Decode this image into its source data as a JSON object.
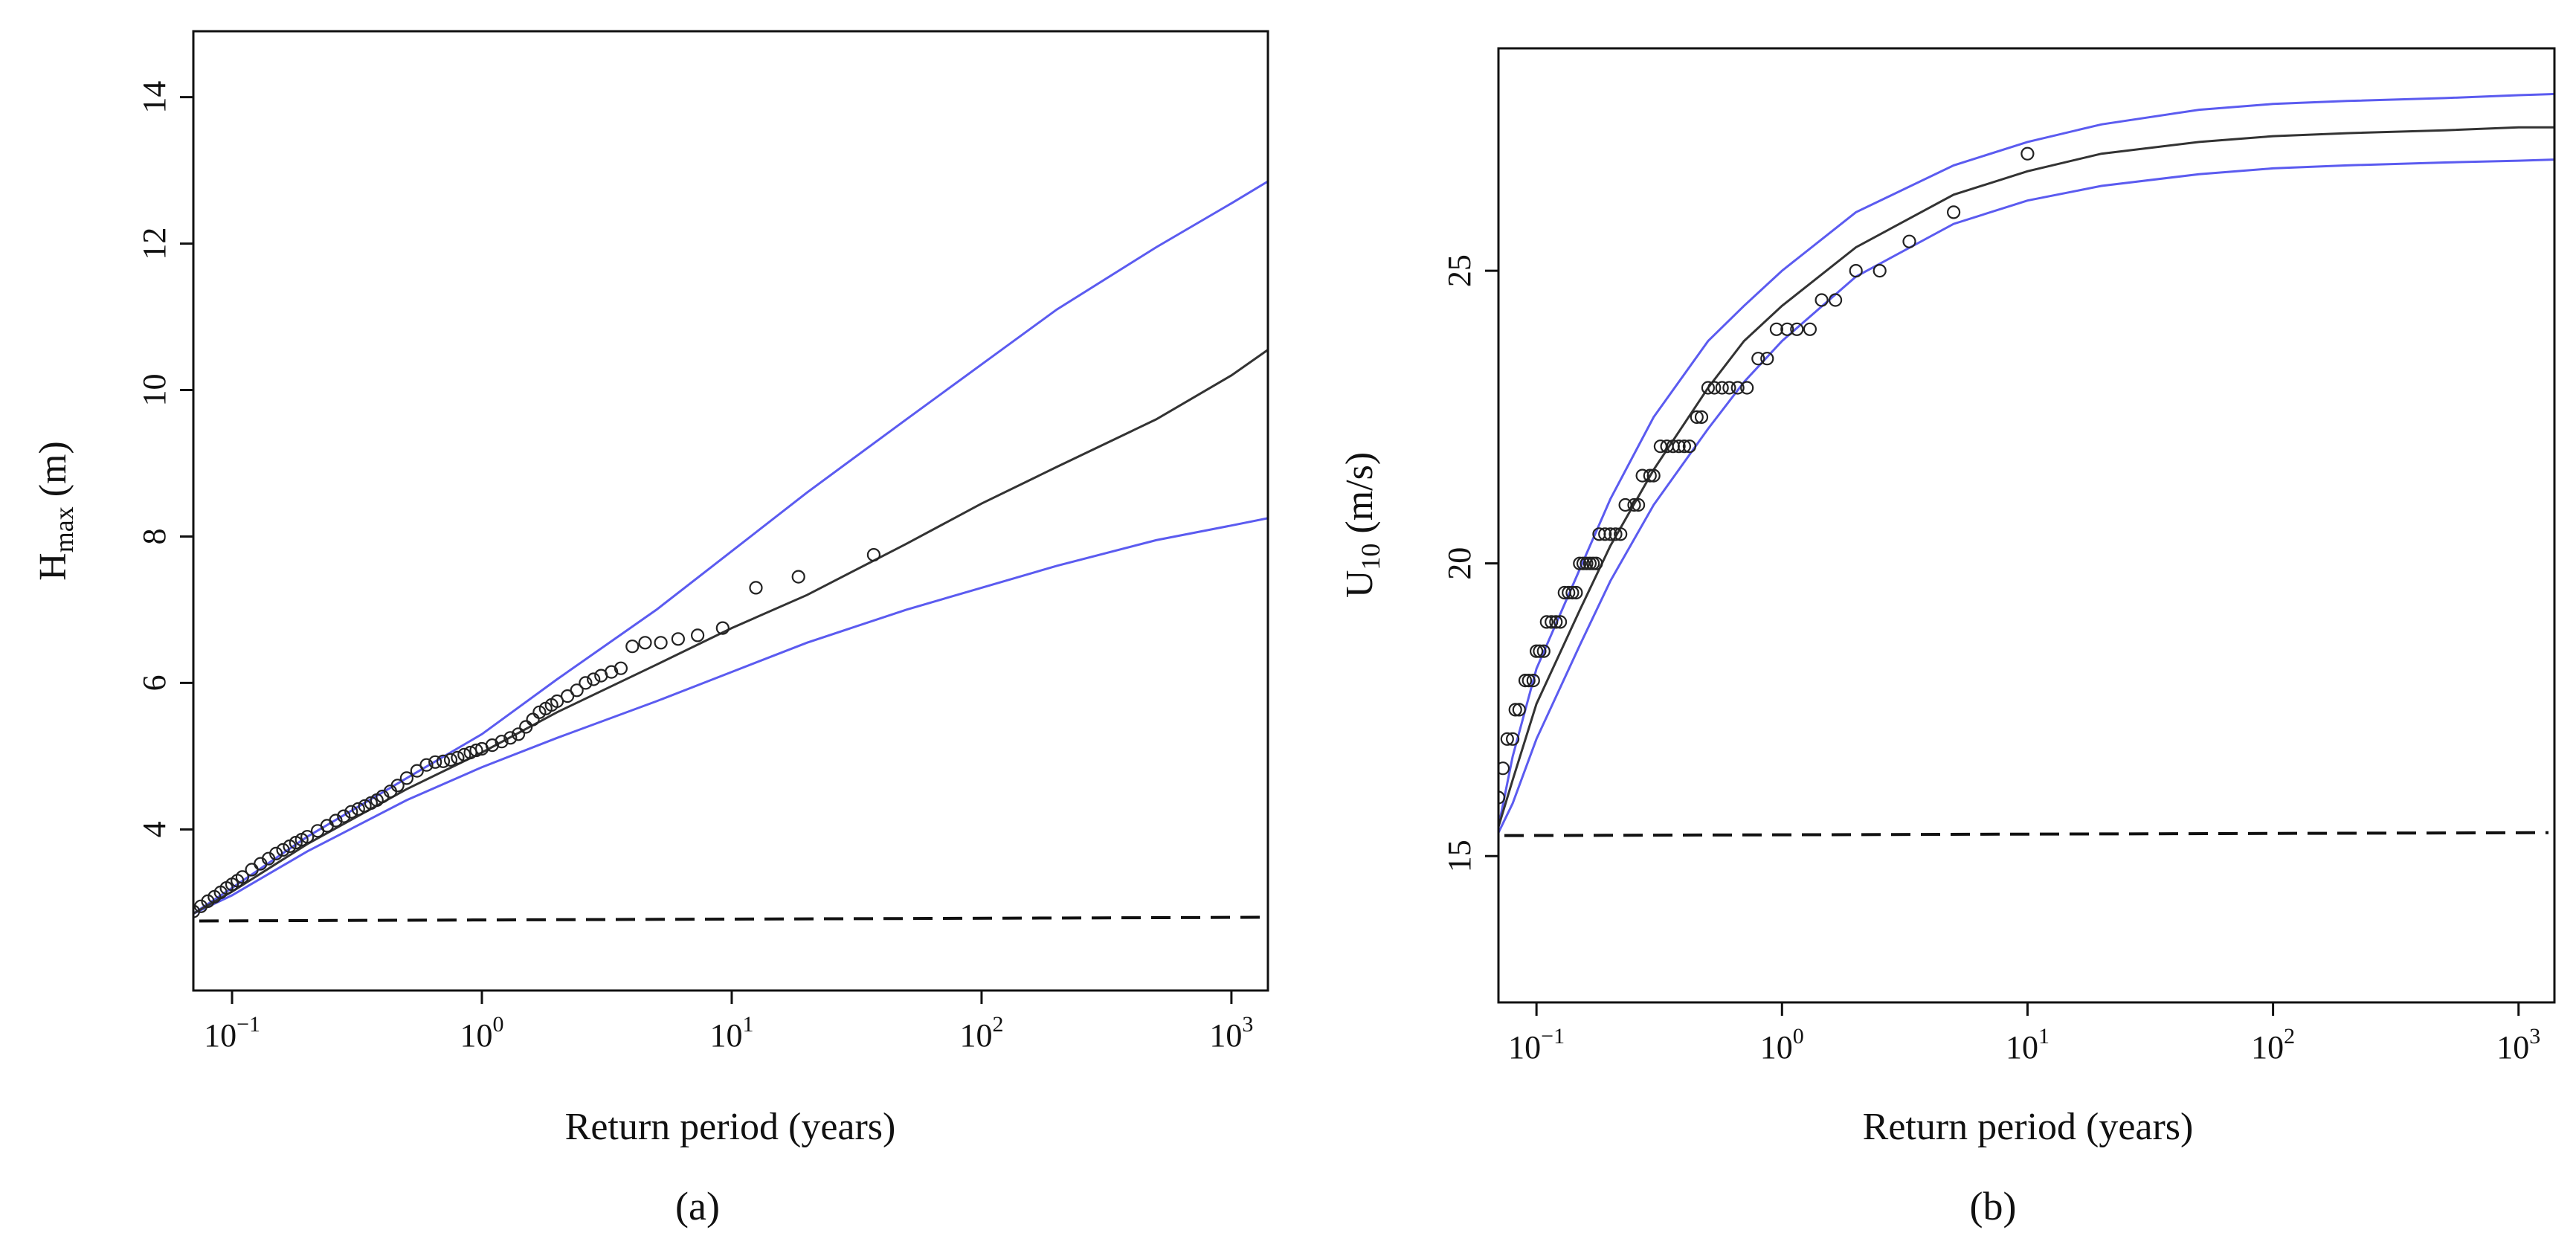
{
  "chart_data": [
    {
      "panel": "a",
      "type": "line",
      "panel_label": "(a)",
      "xlabel": "Return period (years)",
      "ylabel_main": "H",
      "ylabel_sub": "max",
      "ylabel_unit": " (m)",
      "xscale": "log10",
      "xlim": [
        0.07,
        1400
      ],
      "ylim": [
        1.8,
        14.9
      ],
      "xticks": [
        {
          "value": 0.1,
          "exp": "−1"
        },
        {
          "value": 1,
          "exp": "0"
        },
        {
          "value": 10,
          "exp": "1"
        },
        {
          "value": 100,
          "exp": "2"
        },
        {
          "value": 1000,
          "exp": "3"
        }
      ],
      "yticks": [
        4,
        6,
        8,
        10,
        12,
        14
      ],
      "colors": {
        "fit": "#333333",
        "ci": "#5b5bf0",
        "threshold": "#111111",
        "points": "#222222"
      },
      "fit": {
        "x": [
          0.07,
          0.1,
          0.2,
          0.5,
          1,
          2,
          5,
          10,
          20,
          50,
          100,
          200,
          500,
          1000,
          1400
        ],
        "y": [
          2.85,
          3.15,
          3.8,
          4.55,
          5.05,
          5.6,
          6.25,
          6.75,
          7.2,
          7.9,
          8.45,
          8.95,
          9.6,
          10.2,
          10.55
        ]
      },
      "ci_upper": {
        "x": [
          0.07,
          0.1,
          0.2,
          0.5,
          1,
          2,
          5,
          10,
          20,
          50,
          100,
          200,
          500,
          1000,
          1400
        ],
        "y": [
          2.85,
          3.2,
          3.9,
          4.7,
          5.3,
          6.05,
          7.0,
          7.8,
          8.6,
          9.6,
          10.35,
          11.1,
          11.95,
          12.55,
          12.85
        ]
      },
      "ci_lower": {
        "x": [
          0.07,
          0.1,
          0.2,
          0.5,
          1,
          2,
          5,
          10,
          20,
          50,
          100,
          200,
          500,
          1000,
          1400
        ],
        "y": [
          2.85,
          3.1,
          3.7,
          4.4,
          4.85,
          5.25,
          5.75,
          6.15,
          6.55,
          7.0,
          7.3,
          7.6,
          7.95,
          8.15,
          8.25
        ]
      },
      "threshold": {
        "y_start": 2.75,
        "y_end": 2.8
      },
      "points": {
        "x": [
          0.07,
          0.075,
          0.08,
          0.085,
          0.09,
          0.095,
          0.1,
          0.105,
          0.11,
          0.12,
          0.13,
          0.14,
          0.15,
          0.16,
          0.17,
          0.18,
          0.19,
          0.2,
          0.22,
          0.24,
          0.26,
          0.28,
          0.3,
          0.32,
          0.34,
          0.36,
          0.38,
          0.4,
          0.43,
          0.46,
          0.5,
          0.55,
          0.6,
          0.65,
          0.7,
          0.75,
          0.8,
          0.85,
          0.9,
          0.95,
          1.0,
          1.1,
          1.2,
          1.3,
          1.4,
          1.5,
          1.6,
          1.7,
          1.8,
          1.9,
          2.0,
          2.2,
          2.4,
          2.6,
          2.8,
          3.0,
          3.3,
          3.6,
          4.0,
          4.5,
          5.2,
          6.1,
          7.3,
          9.2,
          12.5,
          18.5,
          37
        ],
        "y": [
          2.88,
          2.95,
          3.02,
          3.08,
          3.14,
          3.2,
          3.25,
          3.3,
          3.35,
          3.45,
          3.53,
          3.6,
          3.67,
          3.72,
          3.77,
          3.82,
          3.86,
          3.9,
          3.98,
          4.05,
          4.12,
          4.18,
          4.24,
          4.28,
          4.32,
          4.36,
          4.4,
          4.45,
          4.52,
          4.6,
          4.7,
          4.8,
          4.88,
          4.92,
          4.93,
          4.95,
          4.98,
          5.02,
          5.05,
          5.08,
          5.1,
          5.15,
          5.2,
          5.25,
          5.3,
          5.4,
          5.5,
          5.6,
          5.65,
          5.7,
          5.75,
          5.82,
          5.9,
          6.0,
          6.05,
          6.1,
          6.15,
          6.2,
          6.5,
          6.55,
          6.55,
          6.6,
          6.65,
          6.75,
          7.3,
          7.45,
          7.75
        ]
      }
    },
    {
      "panel": "b",
      "type": "line",
      "panel_label": "(b)",
      "xlabel": "Return period (years)",
      "ylabel_main": "U",
      "ylabel_sub": "10",
      "ylabel_unit": " (m/s)",
      "xscale": "log10",
      "xlim": [
        0.07,
        1400
      ],
      "ylim": [
        12.5,
        28.8
      ],
      "xticks": [
        {
          "value": 0.1,
          "exp": "−1"
        },
        {
          "value": 1,
          "exp": "0"
        },
        {
          "value": 10,
          "exp": "1"
        },
        {
          "value": 100,
          "exp": "2"
        },
        {
          "value": 1000,
          "exp": "3"
        }
      ],
      "yticks": [
        15,
        20,
        25
      ],
      "colors": {
        "fit": "#333333",
        "ci": "#5b5bf0",
        "threshold": "#111111",
        "points": "#222222"
      },
      "fit": {
        "x": [
          0.07,
          0.08,
          0.1,
          0.15,
          0.2,
          0.3,
          0.5,
          0.7,
          1,
          2,
          5,
          10,
          20,
          50,
          100,
          200,
          500,
          1000,
          1400
        ],
        "y": [
          15.5,
          16.3,
          17.6,
          19.2,
          20.3,
          21.6,
          23.0,
          23.8,
          24.4,
          25.4,
          26.3,
          26.7,
          27.0,
          27.2,
          27.3,
          27.35,
          27.4,
          27.45,
          27.45
        ]
      },
      "ci_upper": {
        "x": [
          0.07,
          0.08,
          0.1,
          0.15,
          0.2,
          0.3,
          0.5,
          0.7,
          1,
          2,
          5,
          10,
          20,
          50,
          100,
          200,
          500,
          1000,
          1400
        ],
        "y": [
          15.5,
          16.7,
          18.2,
          19.9,
          21.1,
          22.5,
          23.8,
          24.4,
          25.0,
          26.0,
          26.8,
          27.2,
          27.5,
          27.75,
          27.85,
          27.9,
          27.95,
          28.0,
          28.02
        ]
      },
      "ci_lower": {
        "x": [
          0.07,
          0.08,
          0.1,
          0.15,
          0.2,
          0.3,
          0.5,
          0.7,
          1,
          2,
          5,
          10,
          20,
          50,
          100,
          200,
          500,
          1000,
          1400
        ],
        "y": [
          15.4,
          15.9,
          17.0,
          18.6,
          19.7,
          21.0,
          22.3,
          23.1,
          23.8,
          24.9,
          25.8,
          26.2,
          26.45,
          26.65,
          26.75,
          26.8,
          26.85,
          26.88,
          26.9
        ]
      },
      "threshold": {
        "y_start": 15.35,
        "y_end": 15.4
      },
      "points": {
        "x": [
          0.07,
          0.073,
          0.076,
          0.08,
          0.082,
          0.085,
          0.09,
          0.093,
          0.097,
          0.1,
          0.103,
          0.107,
          0.11,
          0.115,
          0.12,
          0.125,
          0.13,
          0.135,
          0.14,
          0.145,
          0.15,
          0.155,
          0.16,
          0.165,
          0.17,
          0.175,
          0.18,
          0.19,
          0.2,
          0.21,
          0.22,
          0.23,
          0.25,
          0.26,
          0.27,
          0.29,
          0.3,
          0.32,
          0.34,
          0.36,
          0.38,
          0.4,
          0.42,
          0.45,
          0.47,
          0.5,
          0.53,
          0.57,
          0.61,
          0.66,
          0.72,
          0.8,
          0.87,
          0.95,
          1.05,
          1.15,
          1.3,
          1.45,
          1.65,
          2.0,
          2.5,
          3.3,
          5.0,
          10.0
        ],
        "y": [
          16.0,
          16.5,
          17.0,
          17.0,
          17.5,
          17.5,
          18.0,
          18.0,
          18.0,
          18.5,
          18.5,
          18.5,
          19.0,
          19.0,
          19.0,
          19.0,
          19.5,
          19.5,
          19.5,
          19.5,
          20.0,
          20.0,
          20.0,
          20.0,
          20.0,
          20.0,
          20.5,
          20.5,
          20.5,
          20.5,
          20.5,
          21.0,
          21.0,
          21.0,
          21.5,
          21.5,
          21.5,
          22.0,
          22.0,
          22.0,
          22.0,
          22.0,
          22.0,
          22.5,
          22.5,
          23.0,
          23.0,
          23.0,
          23.0,
          23.0,
          23.0,
          23.5,
          23.5,
          24.0,
          24.0,
          24.0,
          24.0,
          24.5,
          24.5,
          25.0,
          25.0,
          25.5,
          26.0,
          27.0
        ]
      }
    }
  ]
}
